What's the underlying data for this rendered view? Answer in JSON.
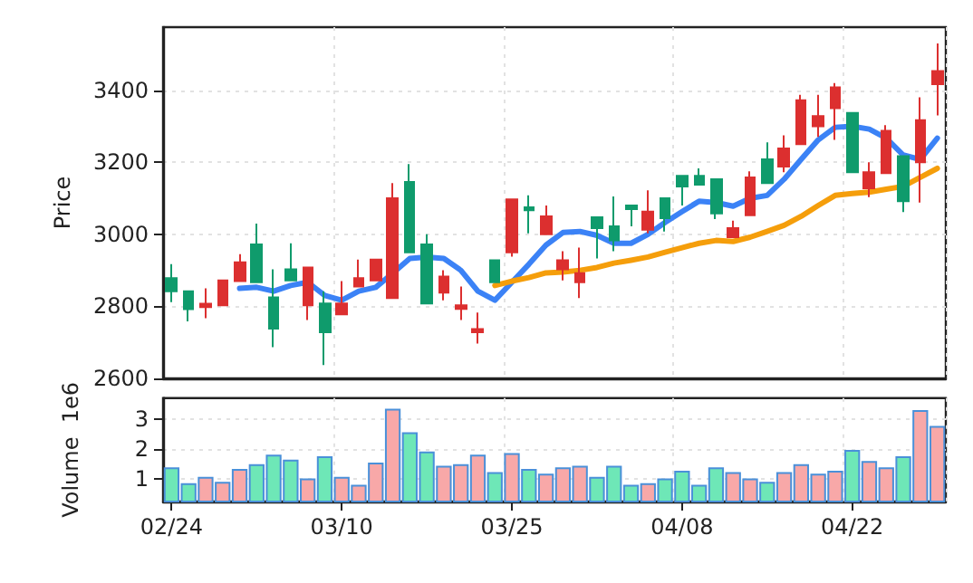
{
  "chart_data": [
    {
      "type": "candlestick",
      "ylabel": "Price",
      "ylim": [
        2600,
        3575
      ],
      "yticks": [
        2600,
        2800,
        3000,
        3200,
        3400
      ],
      "grid": true,
      "tick_labels": "y",
      "series": [
        {
          "type": "candlestick",
          "ohlc": [
            [
              2878,
              2917,
              2812,
              2842
            ],
            [
              2842,
              2842,
              2758,
              2792
            ],
            [
              2798,
              2850,
              2767,
              2807
            ],
            [
              2803,
              2872,
              2803,
              2872
            ],
            [
              2870,
              2945,
              2870,
              2922
            ],
            [
              2972,
              3030,
              2867,
              2867
            ],
            [
              2825,
              2903,
              2687,
              2738
            ],
            [
              2903,
              2975,
              2872,
              2872
            ],
            [
              2803,
              2908,
              2762,
              2908
            ],
            [
              2808,
              2842,
              2637,
              2728
            ],
            [
              2778,
              2870,
              2778,
              2808
            ],
            [
              2855,
              2930,
              2855,
              2878
            ],
            [
              2872,
              2930,
              2872,
              2930
            ],
            [
              2823,
              3142,
              2823,
              3100
            ],
            [
              3145,
              3195,
              2950,
              2950
            ],
            [
              2972,
              3000,
              2808,
              2808
            ],
            [
              2838,
              2900,
              2817,
              2883
            ],
            [
              2793,
              2855,
              2762,
              2803
            ],
            [
              2728,
              2783,
              2697,
              2737
            ],
            [
              2928,
              2928,
              2867,
              2867
            ],
            [
              2950,
              3097,
              2938,
              3097
            ],
            [
              3075,
              3108,
              3003,
              3067
            ],
            [
              3000,
              3080,
              3000,
              3050
            ],
            [
              2903,
              2953,
              2872,
              2928
            ],
            [
              2867,
              2963,
              2823,
              2892
            ],
            [
              3047,
              3047,
              2933,
              3017
            ],
            [
              3022,
              3105,
              2953,
              2983
            ],
            [
              3080,
              3080,
              3022,
              3070
            ],
            [
              3013,
              3122,
              3003,
              3063
            ],
            [
              3100,
              3100,
              3008,
              3045
            ],
            [
              3162,
              3162,
              3080,
              3133
            ],
            [
              3162,
              3183,
              3138,
              3138
            ],
            [
              3153,
              3153,
              3042,
              3058
            ],
            [
              2992,
              3038,
              2992,
              3017
            ],
            [
              3053,
              3175,
              3053,
              3158
            ],
            [
              3208,
              3255,
              3142,
              3142
            ],
            [
              3188,
              3275,
              3172,
              3238
            ],
            [
              3250,
              3387,
              3250,
              3372
            ],
            [
              3300,
              3387,
              3270,
              3328
            ],
            [
              3350,
              3420,
              3262,
              3408
            ],
            [
              3337,
              3337,
              3172,
              3172
            ],
            [
              3128,
              3200,
              3103,
              3172
            ],
            [
              3170,
              3303,
              3170,
              3287
            ],
            [
              3217,
              3217,
              3062,
              3092
            ],
            [
              3200,
              3380,
              3088,
              3317
            ],
            [
              3417,
              3530,
              3330,
              3453
            ]
          ],
          "colors": [
            "#0f9b6c",
            "#0f9b6c",
            "#dc2f2f",
            "#dc2f2f",
            "#dc2f2f",
            "#0f9b6c",
            "#0f9b6c",
            "#0f9b6c",
            "#dc2f2f",
            "#0f9b6c",
            "#dc2f2f",
            "#dc2f2f",
            "#dc2f2f",
            "#dc2f2f",
            "#0f9b6c",
            "#0f9b6c",
            "#dc2f2f",
            "#dc2f2f",
            "#dc2f2f",
            "#0f9b6c",
            "#dc2f2f",
            "#0f9b6c",
            "#dc2f2f",
            "#dc2f2f",
            "#dc2f2f",
            "#0f9b6c",
            "#0f9b6c",
            "#0f9b6c",
            "#dc2f2f",
            "#0f9b6c",
            "#0f9b6c",
            "#0f9b6c",
            "#0f9b6c",
            "#dc2f2f",
            "#dc2f2f",
            "#0f9b6c",
            "#dc2f2f",
            "#dc2f2f",
            "#dc2f2f",
            "#dc2f2f",
            "#0f9b6c",
            "#dc2f2f",
            "#dc2f2f",
            "#0f9b6c",
            "#dc2f2f",
            "#dc2f2f"
          ]
        },
        {
          "type": "line",
          "color": "#3b82f6",
          "values": [
            null,
            null,
            null,
            null,
            2850,
            2853,
            2842,
            2858,
            2867,
            2830,
            2817,
            2842,
            2853,
            2892,
            2933,
            2937,
            2933,
            2900,
            2842,
            2817,
            2867,
            2917,
            2970,
            3005,
            3008,
            2997,
            2975,
            2975,
            3000,
            3033,
            3063,
            3092,
            3088,
            3078,
            3100,
            3108,
            3153,
            3208,
            3262,
            3297,
            3300,
            3292,
            3267,
            3220,
            3208,
            3267
          ]
        },
        {
          "type": "line",
          "color": "#f59e0b",
          "values": [
            null,
            null,
            null,
            null,
            null,
            null,
            null,
            null,
            null,
            null,
            null,
            null,
            null,
            null,
            null,
            null,
            null,
            null,
            null,
            2858,
            2870,
            2880,
            2893,
            2895,
            2900,
            2908,
            2920,
            2928,
            2937,
            2950,
            2963,
            2975,
            2983,
            2980,
            2992,
            3008,
            3025,
            3050,
            3080,
            3108,
            3113,
            3117,
            3125,
            3133,
            3158,
            3183
          ]
        }
      ]
    },
    {
      "type": "bar",
      "ylabel": "Volume  1e6",
      "categories": [
        "02/24",
        null,
        null,
        null,
        null,
        null,
        null,
        null,
        null,
        null,
        "03/10",
        null,
        null,
        null,
        null,
        null,
        null,
        null,
        null,
        null,
        "03/25",
        null,
        null,
        null,
        null,
        null,
        null,
        null,
        null,
        null,
        "04/08",
        null,
        null,
        null,
        null,
        null,
        null,
        null,
        null,
        null,
        "04/22",
        null,
        null,
        null,
        null,
        null
      ],
      "ylim": [
        0.25,
        3.7
      ],
      "yticks": [
        1,
        2,
        3
      ],
      "grid": true,
      "values": [
        1.39,
        0.86,
        1.07,
        0.91,
        1.34,
        1.5,
        1.81,
        1.65,
        1.02,
        1.76,
        1.07,
        0.81,
        1.55,
        3.35,
        2.56,
        1.92,
        1.44,
        1.5,
        1.81,
        1.23,
        1.87,
        1.34,
        1.18,
        1.39,
        1.44,
        1.07,
        1.44,
        0.81,
        0.86,
        1.02,
        1.28,
        0.81,
        1.39,
        1.23,
        1.02,
        0.91,
        1.23,
        1.5,
        1.18,
        1.28,
        1.97,
        1.6,
        1.39,
        1.76,
        3.3,
        2.77
      ],
      "colors": [
        "#6ee7b7",
        "#6ee7b7",
        "#f8a8a8",
        "#f8a8a8",
        "#f8a8a8",
        "#6ee7b7",
        "#6ee7b7",
        "#6ee7b7",
        "#f8a8a8",
        "#6ee7b7",
        "#f8a8a8",
        "#f8a8a8",
        "#f8a8a8",
        "#f8a8a8",
        "#6ee7b7",
        "#6ee7b7",
        "#f8a8a8",
        "#f8a8a8",
        "#f8a8a8",
        "#6ee7b7",
        "#f8a8a8",
        "#6ee7b7",
        "#f8a8a8",
        "#f8a8a8",
        "#f8a8a8",
        "#6ee7b7",
        "#6ee7b7",
        "#6ee7b7",
        "#f8a8a8",
        "#6ee7b7",
        "#6ee7b7",
        "#6ee7b7",
        "#6ee7b7",
        "#f8a8a8",
        "#f8a8a8",
        "#6ee7b7",
        "#f8a8a8",
        "#f8a8a8",
        "#f8a8a8",
        "#f8a8a8",
        "#6ee7b7",
        "#f8a8a8",
        "#f8a8a8",
        "#6ee7b7",
        "#f8a8a8",
        "#f8a8a8"
      ]
    }
  ]
}
